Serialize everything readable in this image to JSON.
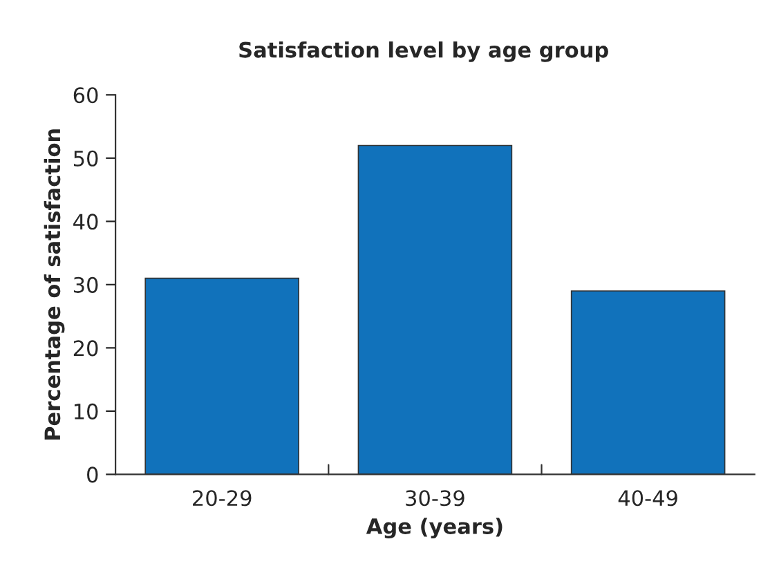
{
  "chart_data": {
    "type": "bar",
    "title": "Satisfaction level by age group",
    "xlabel": "Age (years)",
    "ylabel": "Percentage of satisfaction",
    "categories": [
      "20-29",
      "30-39",
      "40-49"
    ],
    "values": [
      31,
      52,
      29
    ],
    "color": "#1172bb",
    "ylim": [
      0,
      60
    ],
    "yticks": [
      0,
      10,
      20,
      30,
      40,
      50,
      60
    ],
    "grid": false
  }
}
